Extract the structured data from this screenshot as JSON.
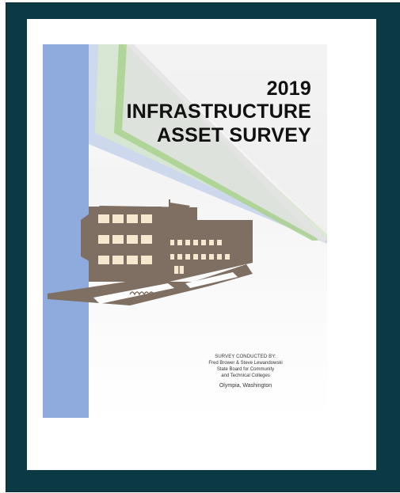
{
  "document": {
    "title_lines": [
      "2019",
      "INFRASTRUCTURE",
      "ASSET SURVEY"
    ],
    "credits": {
      "heading": "SURVEY CONDUCTED BY:",
      "authors": "Fred Brower & Steve Lewandowski",
      "org_line1": "State Board for Community",
      "org_line2": "and Technical Colleges",
      "location": "Olympia, Washington"
    }
  },
  "colors": {
    "frame": "#0b3a45",
    "blue_band": "#8faadc",
    "green_stripe": "#a9d18e",
    "building": "#7f6f63"
  },
  "icons": [
    "building-illustration",
    "flag-icon"
  ]
}
